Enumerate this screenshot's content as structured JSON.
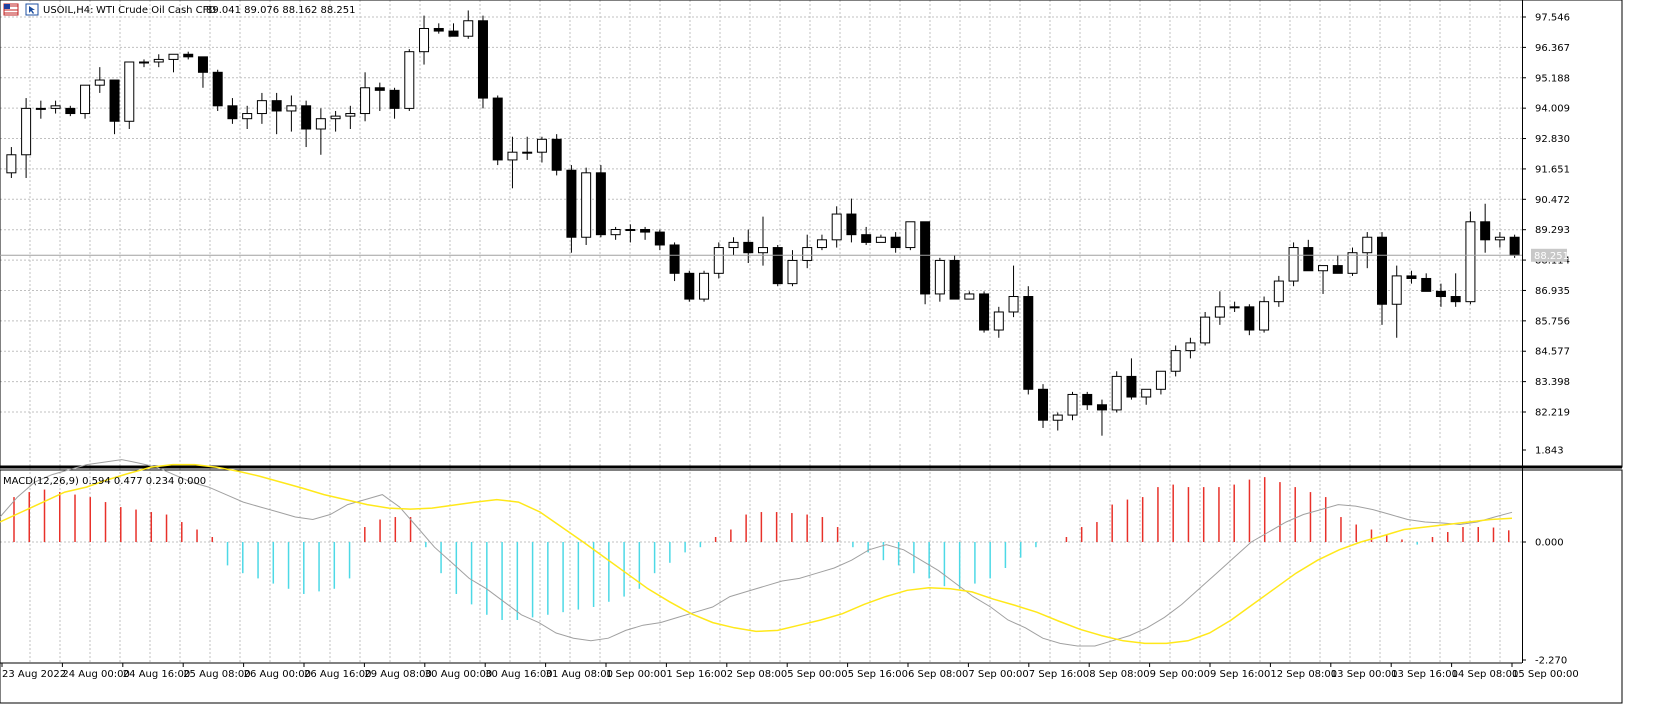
{
  "header": {
    "symbol_timeframe": "USOIL,H4:",
    "description": "WTI Crude Oil Cash CFD",
    "ohlc": "89.041 89.076 88.162 88.251"
  },
  "macd_header": "MACD(12,26,9) 0.594 0.477 0.234 0.000",
  "current_price_label": "88.251",
  "colors": {
    "background": "#FFFFFF",
    "grid": "#C0C0C0",
    "bull_body": "#FFFFFF",
    "bear_body": "#000000",
    "hist_positive": "#E8312A",
    "hist_negative": "#4DD9E6",
    "macd_line": "#A0A0A0",
    "signal_line": "#FFE81A"
  },
  "chart_data": [
    {
      "type": "candlestick",
      "title": "USOIL,H4: WTI Crude Oil Cash CFD",
      "y_ticks": [
        "97.546",
        "96.367",
        "95.188",
        "94.009",
        "92.830",
        "91.651",
        "90.472",
        "89.293",
        "88.114",
        "86.935",
        "85.756",
        "84.577",
        "83.398",
        "82.219"
      ],
      "ylim": [
        81.2,
        98.3
      ],
      "x_labels": [
        "23 Aug 2022",
        "24 Aug 00:00",
        "24 Aug 16:00",
        "25 Aug 08:00",
        "26 Aug 00:00",
        "26 Aug 16:00",
        "29 Aug 08:00",
        "30 Aug 00:00",
        "30 Aug 16:00",
        "31 Aug 08:00",
        "1 Sep 00:00",
        "1 Sep 16:00",
        "2 Sep 08:00",
        "5 Sep 00:00",
        "5 Sep 16:00",
        "6 Sep 08:00",
        "7 Sep 00:00",
        "7 Sep 16:00",
        "8 Sep 08:00",
        "9 Sep 00:00",
        "9 Sep 16:00",
        "12 Sep 08:00",
        "13 Sep 00:00",
        "13 Sep 16:00",
        "14 Sep 08:00",
        "15 Sep 00:00"
      ],
      "candles": [
        [
          91.5,
          92.5,
          91.3,
          92.2
        ],
        [
          92.2,
          94.4,
          91.3,
          94.0
        ],
        [
          94.0,
          94.3,
          93.6,
          94.0
        ],
        [
          94.0,
          94.3,
          93.8,
          94.1
        ],
        [
          94.0,
          94.1,
          93.7,
          93.8
        ],
        [
          93.8,
          94.9,
          93.6,
          94.9
        ],
        [
          94.9,
          95.6,
          94.6,
          95.1
        ],
        [
          95.1,
          95.1,
          93.0,
          93.5
        ],
        [
          93.5,
          95.8,
          93.2,
          95.8
        ],
        [
          95.8,
          95.9,
          95.6,
          95.8
        ],
        [
          95.8,
          96.1,
          95.6,
          95.9
        ],
        [
          95.9,
          96.1,
          95.4,
          96.1
        ],
        [
          96.1,
          96.2,
          95.9,
          96.0
        ],
        [
          96.0,
          96.0,
          94.8,
          95.4
        ],
        [
          95.4,
          95.5,
          93.9,
          94.1
        ],
        [
          94.1,
          94.4,
          93.4,
          93.6
        ],
        [
          93.6,
          94.1,
          93.2,
          93.8
        ],
        [
          93.8,
          94.6,
          93.4,
          94.3
        ],
        [
          94.3,
          94.6,
          93.0,
          93.9
        ],
        [
          93.9,
          94.5,
          93.1,
          94.1
        ],
        [
          94.1,
          94.3,
          92.5,
          93.2
        ],
        [
          93.2,
          94.0,
          92.2,
          93.6
        ],
        [
          93.6,
          93.9,
          93.1,
          93.7
        ],
        [
          93.7,
          94.1,
          93.2,
          93.8
        ],
        [
          93.8,
          95.4,
          93.5,
          94.8
        ],
        [
          94.8,
          95.0,
          93.9,
          94.7
        ],
        [
          94.7,
          94.8,
          93.6,
          94.0
        ],
        [
          94.0,
          96.3,
          93.9,
          96.2
        ],
        [
          96.2,
          97.6,
          95.7,
          97.1
        ],
        [
          97.1,
          97.3,
          96.9,
          97.0
        ],
        [
          97.0,
          97.3,
          96.9,
          96.8
        ],
        [
          96.8,
          97.8,
          96.7,
          97.4
        ],
        [
          97.4,
          97.6,
          94.0,
          94.4
        ],
        [
          94.4,
          94.5,
          91.8,
          92.0
        ],
        [
          92.0,
          92.9,
          90.9,
          92.3
        ],
        [
          92.3,
          92.9,
          92.0,
          92.3
        ],
        [
          92.3,
          92.9,
          91.9,
          92.8
        ],
        [
          92.8,
          93.0,
          91.4,
          91.6
        ],
        [
          91.6,
          91.8,
          88.4,
          89.0
        ],
        [
          89.0,
          91.7,
          88.7,
          91.5
        ],
        [
          91.5,
          91.8,
          89.0,
          89.1
        ],
        [
          89.1,
          89.4,
          88.9,
          89.3
        ],
        [
          89.3,
          89.5,
          88.8,
          89.3
        ],
        [
          89.3,
          89.4,
          88.9,
          89.2
        ],
        [
          89.2,
          89.3,
          88.5,
          88.7
        ],
        [
          88.7,
          88.8,
          87.3,
          87.6
        ],
        [
          87.6,
          87.7,
          86.5,
          86.6
        ],
        [
          86.6,
          87.7,
          86.5,
          87.6
        ],
        [
          87.6,
          88.8,
          87.4,
          88.6
        ],
        [
          88.6,
          89.0,
          88.3,
          88.8
        ],
        [
          88.8,
          89.3,
          88.0,
          88.4
        ],
        [
          88.4,
          89.8,
          87.9,
          88.6
        ],
        [
          88.6,
          88.7,
          87.1,
          87.2
        ],
        [
          87.2,
          88.5,
          87.1,
          88.1
        ],
        [
          88.1,
          89.1,
          87.8,
          88.6
        ],
        [
          88.6,
          89.1,
          88.5,
          88.9
        ],
        [
          88.9,
          90.2,
          88.6,
          89.9
        ],
        [
          89.9,
          90.5,
          88.8,
          89.1
        ],
        [
          89.1,
          89.4,
          88.7,
          88.8
        ],
        [
          88.8,
          89.1,
          88.8,
          89.0
        ],
        [
          89.0,
          89.2,
          88.4,
          88.6
        ],
        [
          88.6,
          89.6,
          88.5,
          89.6
        ],
        [
          89.6,
          89.6,
          86.4,
          86.8
        ],
        [
          86.8,
          88.2,
          86.5,
          88.1
        ],
        [
          88.1,
          88.3,
          86.6,
          86.6
        ],
        [
          86.6,
          86.9,
          86.6,
          86.8
        ],
        [
          86.8,
          86.9,
          85.3,
          85.4
        ],
        [
          85.4,
          86.3,
          85.1,
          86.1
        ],
        [
          86.1,
          87.9,
          85.9,
          86.7
        ],
        [
          86.7,
          87.1,
          82.9,
          83.1
        ],
        [
          83.1,
          83.3,
          81.6,
          81.9
        ],
        [
          81.9,
          82.2,
          81.5,
          82.1
        ],
        [
          82.1,
          83.0,
          81.9,
          82.9
        ],
        [
          82.9,
          83.0,
          82.3,
          82.5
        ],
        [
          82.5,
          82.7,
          81.3,
          82.3
        ],
        [
          82.3,
          83.8,
          82.2,
          83.6
        ],
        [
          83.6,
          84.3,
          82.7,
          82.8
        ],
        [
          82.8,
          83.1,
          82.5,
          83.1
        ],
        [
          83.1,
          83.8,
          82.9,
          83.8
        ],
        [
          83.8,
          84.8,
          83.6,
          84.6
        ],
        [
          84.6,
          85.1,
          84.3,
          84.9
        ],
        [
          84.9,
          86.1,
          84.8,
          85.9
        ],
        [
          85.9,
          86.9,
          85.6,
          86.3
        ],
        [
          86.3,
          86.5,
          86.1,
          86.3
        ],
        [
          86.3,
          86.4,
          85.2,
          85.4
        ],
        [
          85.4,
          86.7,
          85.3,
          86.5
        ],
        [
          86.5,
          87.5,
          86.3,
          87.3
        ],
        [
          87.3,
          88.8,
          87.1,
          88.6
        ],
        [
          88.6,
          88.9,
          87.7,
          87.7
        ],
        [
          87.7,
          87.9,
          86.8,
          87.9
        ],
        [
          87.9,
          88.3,
          87.6,
          87.6
        ],
        [
          87.6,
          88.6,
          87.5,
          88.4
        ],
        [
          88.4,
          89.2,
          87.8,
          89.0
        ],
        [
          89.0,
          89.2,
          85.6,
          86.4
        ],
        [
          86.4,
          87.9,
          85.1,
          87.5
        ],
        [
          87.5,
          87.7,
          87.2,
          87.4
        ],
        [
          87.4,
          87.6,
          86.9,
          86.9
        ],
        [
          86.9,
          87.2,
          86.3,
          86.7
        ],
        [
          86.7,
          87.6,
          86.3,
          86.5
        ],
        [
          86.5,
          90.0,
          86.4,
          89.6
        ],
        [
          89.6,
          90.3,
          88.4,
          88.9
        ],
        [
          88.9,
          89.2,
          88.6,
          89.0
        ],
        [
          89.0,
          89.1,
          88.2,
          88.3
        ]
      ]
    },
    {
      "type": "bar+line",
      "title": "MACD(12,26,9) 0.594 0.477 0.234 0.000",
      "y_ticks": [
        "1.843",
        "0.000",
        "-2.270"
      ],
      "ylim": [
        -2.55,
        2.05
      ],
      "histogram": [
        0.9,
        1.0,
        1.05,
        1.0,
        0.95,
        0.9,
        0.8,
        0.7,
        0.65,
        0.6,
        0.55,
        0.4,
        0.25,
        0.1,
        -0.45,
        -0.6,
        -0.7,
        -0.8,
        -0.9,
        -1.0,
        -0.95,
        -0.9,
        -0.7,
        0.3,
        0.45,
        0.5,
        0.5,
        -0.1,
        -0.6,
        -1.0,
        -1.2,
        -1.4,
        -1.5,
        -1.5,
        -1.45,
        -1.4,
        -1.35,
        -1.3,
        -1.25,
        -1.15,
        -1.05,
        -0.9,
        -0.6,
        -0.4,
        -0.2,
        -0.1,
        0.1,
        0.25,
        0.55,
        0.6,
        0.6,
        0.58,
        0.55,
        0.5,
        0.3,
        -0.1,
        -0.2,
        -0.35,
        -0.45,
        -0.6,
        -0.7,
        -0.85,
        -0.9,
        -0.8,
        -0.7,
        -0.5,
        -0.3,
        -0.1,
        0.0,
        0.1,
        0.3,
        0.4,
        0.75,
        0.85,
        0.9,
        1.1,
        1.15,
        1.1,
        1.1,
        1.1,
        1.15,
        1.25,
        1.3,
        1.2,
        1.1,
        1.0,
        0.9,
        0.5,
        0.35,
        0.25,
        0.15,
        0.05,
        -0.05,
        0.1,
        0.2,
        0.3,
        0.3,
        0.29,
        0.234
      ],
      "macd": [
        0.5,
        0.9,
        1.2,
        1.35,
        1.45,
        1.55,
        1.6,
        1.65,
        1.58,
        1.5,
        1.35,
        1.2,
        1.1,
        0.95,
        0.8,
        0.7,
        0.6,
        0.5,
        0.45,
        0.55,
        0.75,
        0.85,
        0.95,
        0.7,
        0.3,
        -0.1,
        -0.4,
        -0.7,
        -0.9,
        -1.15,
        -1.4,
        -1.55,
        -1.75,
        -1.85,
        -1.9,
        -1.85,
        -1.7,
        -1.6,
        -1.55,
        -1.45,
        -1.35,
        -1.25,
        -1.05,
        -0.95,
        -0.85,
        -0.75,
        -0.7,
        -0.6,
        -0.5,
        -0.35,
        -0.15,
        -0.05,
        -0.15,
        -0.35,
        -0.55,
        -0.8,
        -1.05,
        -1.25,
        -1.5,
        -1.65,
        -1.85,
        -1.95,
        -2.0,
        -2.0,
        -1.9,
        -1.8,
        -1.65,
        -1.45,
        -1.2,
        -0.9,
        -0.6,
        -0.3,
        0.0,
        0.2,
        0.4,
        0.55,
        0.65,
        0.75,
        0.72,
        0.65,
        0.55,
        0.45,
        0.4,
        0.38,
        0.35,
        0.4,
        0.5,
        0.594
      ],
      "signal": [
        0.4,
        0.6,
        0.8,
        1.0,
        1.1,
        1.25,
        1.38,
        1.5,
        1.55,
        1.55,
        1.5,
        1.42,
        1.32,
        1.2,
        1.08,
        0.95,
        0.85,
        0.75,
        0.68,
        0.66,
        0.68,
        0.74,
        0.8,
        0.85,
        0.8,
        0.6,
        0.3,
        0.0,
        -0.3,
        -0.6,
        -0.9,
        -1.15,
        -1.38,
        -1.55,
        -1.65,
        -1.72,
        -1.7,
        -1.6,
        -1.5,
        -1.38,
        -1.2,
        -1.05,
        -0.93,
        -0.88,
        -0.9,
        -0.96,
        -1.1,
        -1.22,
        -1.35,
        -1.52,
        -1.68,
        -1.8,
        -1.9,
        -1.95,
        -1.95,
        -1.9,
        -1.75,
        -1.5,
        -1.2,
        -0.9,
        -0.6,
        -0.35,
        -0.15,
        0.0,
        0.12,
        0.25,
        0.3,
        0.35,
        0.4,
        0.45,
        0.477
      ],
      "macd_x_fraction_end": 1.0,
      "signal_x_fraction_end": 1.0
    }
  ]
}
